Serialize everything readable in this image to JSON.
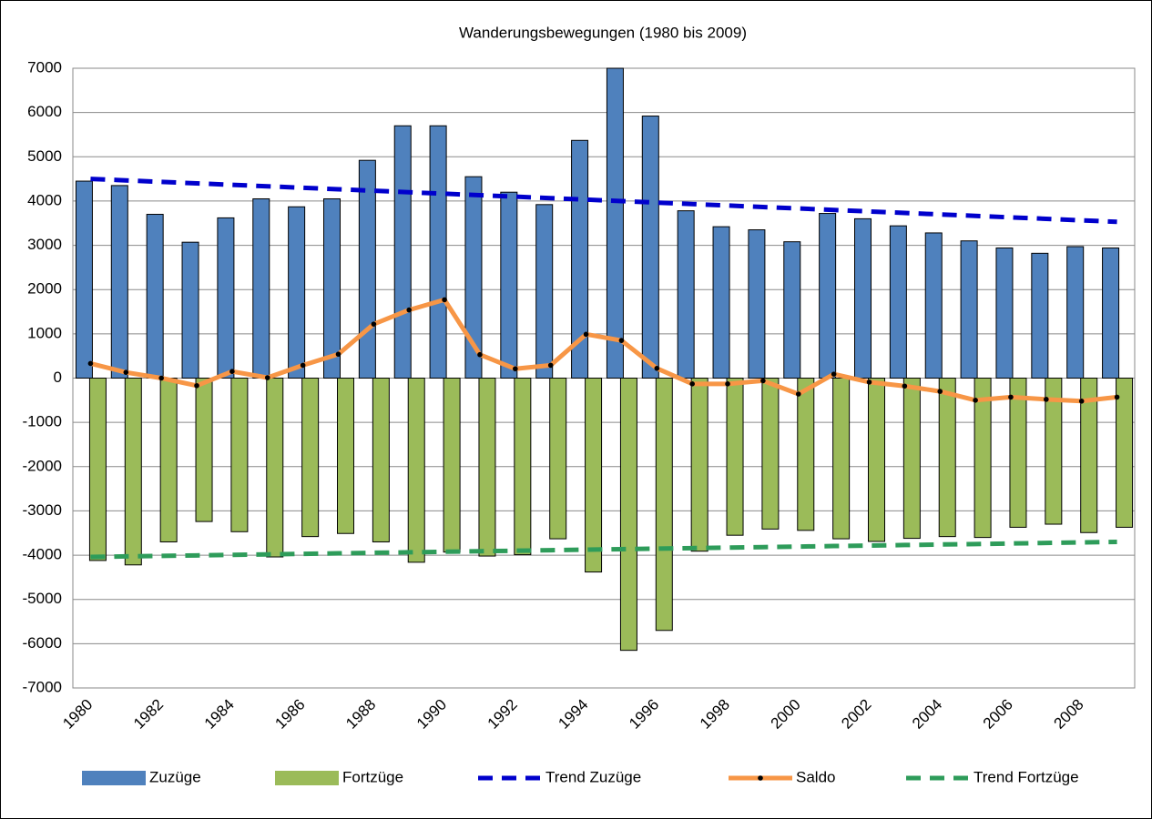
{
  "chart_data": {
    "type": "bar",
    "title": "Wanderungsbewegungen (1980 bis 2009)",
    "categories": [
      "1980",
      null,
      "1982",
      null,
      "1984",
      null,
      "1986",
      null,
      "1988",
      null,
      "1990",
      null,
      "1992",
      null,
      "1994",
      null,
      "1996",
      null,
      "1998",
      null,
      "2000",
      null,
      "2002",
      null,
      "2004",
      null,
      "2006",
      null,
      "2008",
      null
    ],
    "ylim": [
      -7000,
      7000
    ],
    "yticks": [
      -7000,
      -6000,
      -5000,
      -4000,
      -3000,
      -2000,
      -1000,
      0,
      1000,
      2000,
      3000,
      4000,
      5000,
      6000,
      7000
    ],
    "grid": true,
    "legend": "bottom",
    "series": [
      {
        "name": "Zuzüge",
        "type": "bar",
        "color": "#4f81bd",
        "values": [
          4450,
          4350,
          3700,
          3070,
          3620,
          4050,
          3870,
          4050,
          4920,
          5700,
          5700,
          4550,
          4200,
          3920,
          5370,
          7000,
          5920,
          3780,
          3420,
          3350,
          3080,
          3720,
          3600,
          3440,
          3280,
          3100,
          2940,
          2820,
          2970,
          2940
        ]
      },
      {
        "name": "Fortzüge",
        "type": "bar",
        "color": "#9bbb59",
        "values": [
          -4120,
          -4220,
          -3700,
          -3240,
          -3470,
          -4040,
          -3580,
          -3510,
          -3700,
          -4160,
          -3930,
          -4020,
          -3990,
          -3630,
          -4380,
          -6150,
          -5700,
          -3910,
          -3550,
          -3410,
          -3440,
          -3630,
          -3690,
          -3620,
          -3580,
          -3600,
          -3370,
          -3300,
          -3490,
          -3370
        ]
      },
      {
        "name": "Trend Zuzüge",
        "type": "line",
        "dashed": true,
        "color": "#0000cc",
        "values": [
          4500,
          4467,
          4433,
          4400,
          4366,
          4333,
          4300,
          4266,
          4233,
          4199,
          4166,
          4132,
          4099,
          4066,
          4032,
          3999,
          3965,
          3932,
          3899,
          3865,
          3832,
          3798,
          3765,
          3731,
          3698,
          3665,
          3631,
          3598,
          3564,
          3531
        ]
      },
      {
        "name": "Saldo",
        "type": "line",
        "markers": true,
        "color": "#f79646",
        "values": [
          330,
          130,
          0,
          -170,
          150,
          10,
          290,
          540,
          1220,
          1540,
          1770,
          530,
          210,
          290,
          990,
          850,
          220,
          -130,
          -130,
          -60,
          -360,
          90,
          -90,
          -180,
          -300,
          -500,
          -430,
          -480,
          -520,
          -430
        ]
      },
      {
        "name": "Trend Fortzüge",
        "type": "line",
        "dashed": true,
        "color": "#2e9c5a",
        "values": [
          -4040,
          -4028,
          -4017,
          -4005,
          -3993,
          -3982,
          -3970,
          -3958,
          -3946,
          -3935,
          -3923,
          -3911,
          -3900,
          -3888,
          -3876,
          -3865,
          -3853,
          -3841,
          -3829,
          -3818,
          -3806,
          -3794,
          -3783,
          -3771,
          -3759,
          -3748,
          -3736,
          -3724,
          -3712,
          -3701
        ]
      }
    ]
  }
}
